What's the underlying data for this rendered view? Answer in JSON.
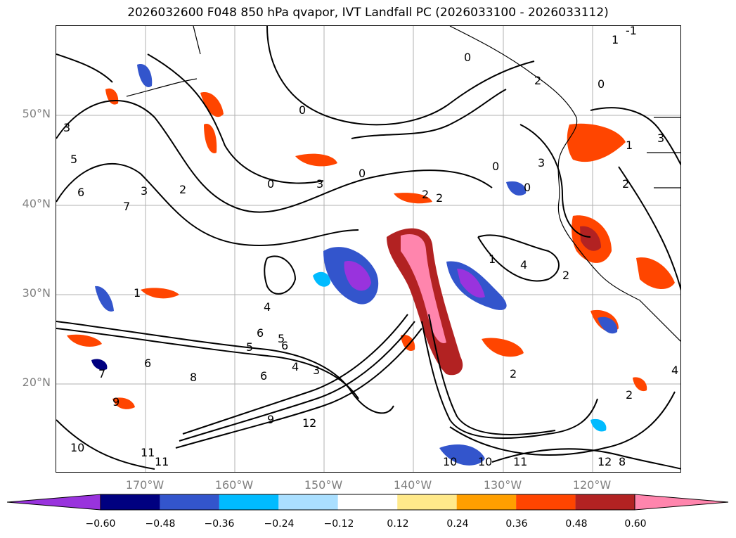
{
  "title": "2026032600 F048 850 hPa qvapor, IVT Landfall PC (2026033100 - 2026033112)",
  "map": {
    "lat_ticks": [
      "50°N",
      "40°N",
      "30°N",
      "20°N"
    ],
    "lon_ticks": [
      "170°W",
      "160°W",
      "150°W",
      "140°W",
      "130°W",
      "120°W"
    ],
    "contour_labels": [
      "-1",
      "1",
      "2",
      "0",
      "3",
      "5",
      "6",
      "7",
      "3",
      "2",
      "0",
      "0",
      "0",
      "3",
      "2",
      "4",
      "2",
      "0",
      "2",
      "3",
      "1",
      "3",
      "1",
      "0",
      "0",
      "1",
      "2",
      "4",
      "6",
      "5",
      "6",
      "5",
      "6",
      "7",
      "8",
      "9",
      "10",
      "11",
      "11",
      "12",
      "9",
      "10",
      "10",
      "11",
      "12",
      "8",
      "6",
      "4",
      "3",
      "4",
      "2",
      "2"
    ]
  },
  "colorbar": {
    "ticks": [
      "−0.60",
      "−0.48",
      "−0.36",
      "−0.24",
      "−0.12",
      "0.12",
      "0.24",
      "0.36",
      "0.48",
      "0.60"
    ],
    "colors": [
      "#9933dd",
      "#000080",
      "#3355cc",
      "#00bbff",
      "#aadfff",
      "#ffffff",
      "#ffe98a",
      "#ff9f00",
      "#ff4500",
      "#b22222",
      "#ff85ad"
    ]
  }
}
